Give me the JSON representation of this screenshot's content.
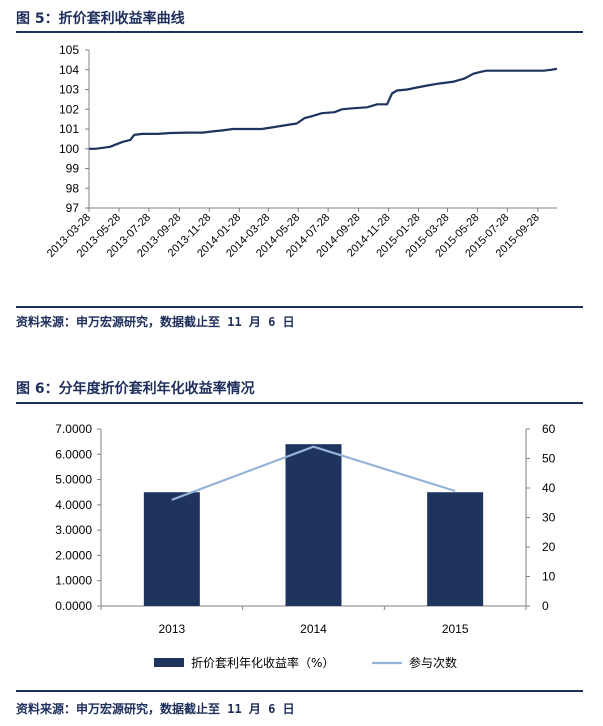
{
  "figure5": {
    "title": "图 5：折价套利收益率曲线",
    "source": "资料来源：申万宏源研究，数据截止至 11 月 6 日"
  },
  "figure6": {
    "title": "图 6：分年度折价套利年化收益率情况",
    "source": "资料来源：申万宏源研究，数据截止至 11 月 6 日"
  },
  "colors": {
    "navy": "#1f335f",
    "lightblue": "#95b3d7",
    "axis": "#808080"
  },
  "chart_data": [
    {
      "type": "line",
      "title": "",
      "xlabel": "",
      "ylabel": "",
      "ylim": [
        97,
        105
      ],
      "yticks": [
        97,
        98,
        99,
        100,
        101,
        102,
        103,
        104,
        105
      ],
      "xticks": [
        "2013-03-28",
        "2013-05-28",
        "2013-07-28",
        "2013-09-28",
        "2013-11-28",
        "2014-01-28",
        "2014-03-28",
        "2014-05-28",
        "2014-07-28",
        "2014-09-28",
        "2014-11-28",
        "2015-01-28",
        "2015-03-28",
        "2015-05-28",
        "2015-07-28",
        "2015-09-28"
      ],
      "x_range": [
        "2013-03-28",
        "2015-11-06"
      ],
      "grid": false,
      "series": [
        {
          "color": "#1f335f",
          "points": [
            [
              "2013-03-28",
              100.0
            ],
            [
              "2013-04-10",
              100.0
            ],
            [
              "2013-04-25",
              100.05
            ],
            [
              "2013-05-10",
              100.1
            ],
            [
              "2013-05-20",
              100.2
            ],
            [
              "2013-06-05",
              100.35
            ],
            [
              "2013-06-20",
              100.45
            ],
            [
              "2013-06-28",
              100.7
            ],
            [
              "2013-07-15",
              100.75
            ],
            [
              "2013-08-15",
              100.75
            ],
            [
              "2013-09-10",
              100.8
            ],
            [
              "2013-10-15",
              100.82
            ],
            [
              "2013-11-15",
              100.82
            ],
            [
              "2013-12-05",
              100.88
            ],
            [
              "2013-12-25",
              100.93
            ],
            [
              "2014-01-15",
              101.0
            ],
            [
              "2014-02-15",
              101.0
            ],
            [
              "2014-03-15",
              101.0
            ],
            [
              "2014-04-10",
              101.1
            ],
            [
              "2014-05-05",
              101.2
            ],
            [
              "2014-05-25",
              101.28
            ],
            [
              "2014-06-10",
              101.55
            ],
            [
              "2014-06-25",
              101.65
            ],
            [
              "2014-07-15",
              101.8
            ],
            [
              "2014-08-10",
              101.85
            ],
            [
              "2014-08-25",
              102.0
            ],
            [
              "2014-09-15",
              102.05
            ],
            [
              "2014-10-15",
              102.1
            ],
            [
              "2014-11-05",
              102.25
            ],
            [
              "2014-11-25",
              102.25
            ],
            [
              "2014-12-05",
              102.8
            ],
            [
              "2014-12-15",
              102.95
            ],
            [
              "2015-01-05",
              103.0
            ],
            [
              "2015-01-25",
              103.1
            ],
            [
              "2015-02-15",
              103.2
            ],
            [
              "2015-03-10",
              103.3
            ],
            [
              "2015-04-10",
              103.4
            ],
            [
              "2015-05-01",
              103.55
            ],
            [
              "2015-05-20",
              103.8
            ],
            [
              "2015-06-05",
              103.9
            ],
            [
              "2015-06-15",
              103.95
            ],
            [
              "2015-07-15",
              103.95
            ],
            [
              "2015-08-15",
              103.95
            ],
            [
              "2015-09-15",
              103.95
            ],
            [
              "2015-10-10",
              103.95
            ],
            [
              "2015-10-25",
              104.0
            ],
            [
              "2015-11-06",
              104.05
            ]
          ]
        }
      ]
    },
    {
      "type": "bar",
      "title": "",
      "xlabel": "",
      "categories": [
        "2013",
        "2014",
        "2015"
      ],
      "ylim_left": [
        0,
        7
      ],
      "yticks_left": [
        "0.0000",
        "1.0000",
        "2.0000",
        "3.0000",
        "4.0000",
        "5.0000",
        "6.0000",
        "7.0000"
      ],
      "ylim_right": [
        0,
        60
      ],
      "yticks_right": [
        "0",
        "10",
        "20",
        "30",
        "40",
        "50",
        "60"
      ],
      "legend_position": "bottom",
      "grid": false,
      "series": [
        {
          "name": "折价套利年化收益率（%）",
          "type": "bar",
          "axis": "left",
          "color": "#1f335f",
          "values": [
            4.5,
            6.4,
            4.5
          ]
        },
        {
          "name": "参与次数",
          "type": "line",
          "axis": "right",
          "color": "#95b3d7",
          "values": [
            36,
            54,
            39
          ]
        }
      ]
    }
  ]
}
